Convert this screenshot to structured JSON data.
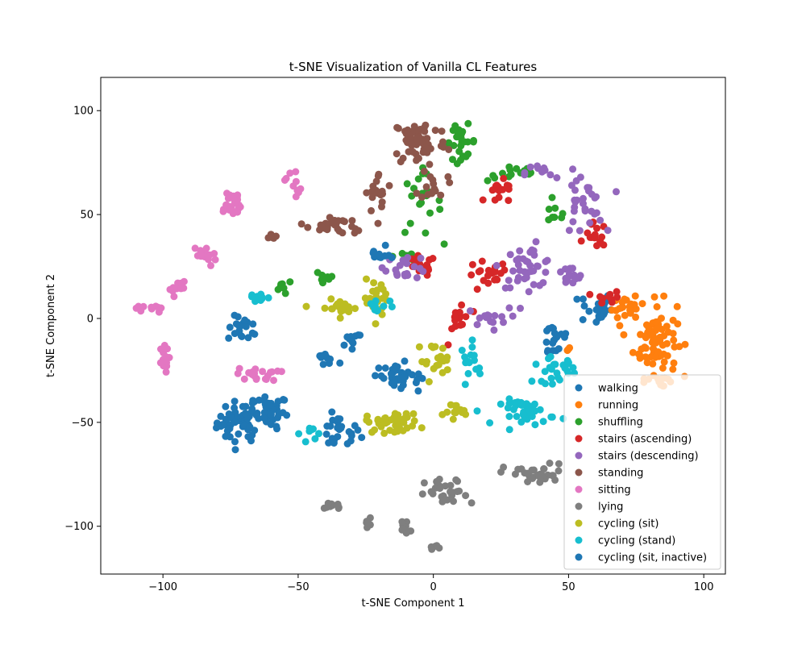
{
  "chart_data": {
    "type": "scatter",
    "title": "t-SNE Visualization of Vanilla CL Features",
    "xlabel": "t-SNE Component 1",
    "ylabel": "t-SNE Component 2",
    "xlim": [
      -123,
      108
    ],
    "ylim": [
      -123,
      116
    ],
    "xticks": [
      -100,
      -50,
      0,
      50,
      100
    ],
    "yticks": [
      -100,
      -50,
      0,
      50,
      100
    ],
    "grid": false,
    "legend_position": "lower-right",
    "series": [
      {
        "name": "walking",
        "color": "#1f77b4",
        "clusters": [
          [
            -72,
            -50,
            8,
            10,
            40
          ],
          [
            -60,
            -45,
            6,
            8,
            25
          ],
          [
            -35,
            -55,
            8,
            8,
            25
          ],
          [
            -70,
            -5,
            6,
            6,
            20
          ],
          [
            60,
            5,
            6,
            8,
            25
          ],
          [
            45,
            -10,
            6,
            10,
            20
          ],
          [
            -15,
            -25,
            6,
            6,
            15
          ]
        ]
      },
      {
        "name": "running",
        "color": "#ff7f0e",
        "clusters": [
          [
            82,
            -10,
            8,
            18,
            80
          ],
          [
            72,
            5,
            6,
            5,
            20
          ],
          [
            85,
            -30,
            4,
            4,
            10
          ],
          [
            50,
            -15,
            2,
            2,
            3
          ]
        ]
      },
      {
        "name": "shuffling",
        "color": "#2ca02c",
        "clusters": [
          [
            10,
            85,
            6,
            8,
            25
          ],
          [
            -5,
            55,
            8,
            15,
            20
          ],
          [
            30,
            70,
            10,
            4,
            15
          ],
          [
            -40,
            20,
            4,
            5,
            10
          ],
          [
            -10,
            30,
            5,
            5,
            10
          ],
          [
            45,
            50,
            5,
            5,
            8
          ],
          [
            -55,
            15,
            4,
            4,
            8
          ]
        ]
      },
      {
        "name": "stairs (ascending)",
        "color": "#d62728",
        "clusters": [
          [
            -5,
            25,
            6,
            5,
            15
          ],
          [
            20,
            20,
            8,
            8,
            20
          ],
          [
            60,
            40,
            4,
            6,
            15
          ],
          [
            25,
            60,
            6,
            6,
            15
          ],
          [
            10,
            0,
            4,
            10,
            15
          ],
          [
            65,
            10,
            5,
            3,
            10
          ]
        ]
      },
      {
        "name": "stairs (descending)",
        "color": "#9467bd",
        "clusters": [
          [
            -10,
            25,
            8,
            6,
            20
          ],
          [
            35,
            25,
            10,
            10,
            40
          ],
          [
            55,
            55,
            8,
            15,
            30
          ],
          [
            20,
            0,
            8,
            5,
            15
          ],
          [
            50,
            20,
            6,
            5,
            15
          ],
          [
            40,
            70,
            6,
            5,
            10
          ]
        ]
      },
      {
        "name": "standing",
        "color": "#8c564b",
        "clusters": [
          [
            -5,
            85,
            10,
            12,
            60
          ],
          [
            -20,
            60,
            5,
            10,
            20
          ],
          [
            -40,
            45,
            6,
            4,
            20
          ],
          [
            0,
            65,
            5,
            8,
            15
          ],
          [
            -30,
            45,
            5,
            4,
            10
          ],
          [
            -60,
            40,
            2,
            2,
            5
          ]
        ]
      },
      {
        "name": "sitting",
        "color": "#e377c2",
        "clusters": [
          [
            -75,
            55,
            5,
            8,
            25
          ],
          [
            -100,
            -20,
            2,
            6,
            15
          ],
          [
            -85,
            30,
            5,
            5,
            15
          ],
          [
            -65,
            -27,
            8,
            3,
            20
          ],
          [
            -105,
            5,
            5,
            3,
            12
          ],
          [
            -52,
            65,
            3,
            8,
            10
          ],
          [
            -95,
            15,
            4,
            4,
            10
          ]
        ]
      },
      {
        "name": "lying",
        "color": "#7f7f7f",
        "clusters": [
          [
            38,
            -75,
            12,
            5,
            30
          ],
          [
            5,
            -85,
            8,
            8,
            30
          ],
          [
            -10,
            -100,
            3,
            4,
            15
          ],
          [
            -37,
            -90,
            3,
            2,
            10
          ],
          [
            -25,
            -98,
            2,
            2,
            5
          ],
          [
            0,
            -110,
            2,
            1,
            5
          ]
        ]
      },
      {
        "name": "cycling (sit)",
        "color": "#bcbd22",
        "clusters": [
          [
            -15,
            -50,
            10,
            5,
            40
          ],
          [
            -35,
            5,
            8,
            4,
            25
          ],
          [
            -20,
            10,
            6,
            8,
            20
          ],
          [
            0,
            -20,
            6,
            8,
            20
          ],
          [
            10,
            -45,
            6,
            5,
            15
          ]
        ]
      },
      {
        "name": "cycling (stand)",
        "color": "#17becf",
        "clusters": [
          [
            35,
            -45,
            10,
            6,
            40
          ],
          [
            45,
            -25,
            8,
            6,
            25
          ],
          [
            15,
            -20,
            5,
            8,
            15
          ],
          [
            -65,
            10,
            4,
            3,
            10
          ],
          [
            -45,
            -55,
            4,
            4,
            10
          ],
          [
            -20,
            5,
            5,
            5,
            10
          ]
        ]
      },
      {
        "name": "cycling (sit, inactive)",
        "color": "#1f77b4",
        "clusters": [
          [
            -68,
            -45,
            10,
            10,
            25
          ],
          [
            -10,
            -30,
            6,
            6,
            20
          ],
          [
            -40,
            -20,
            4,
            4,
            10
          ],
          [
            -20,
            30,
            4,
            4,
            10
          ],
          [
            -30,
            -10,
            5,
            4,
            10
          ]
        ]
      }
    ]
  }
}
